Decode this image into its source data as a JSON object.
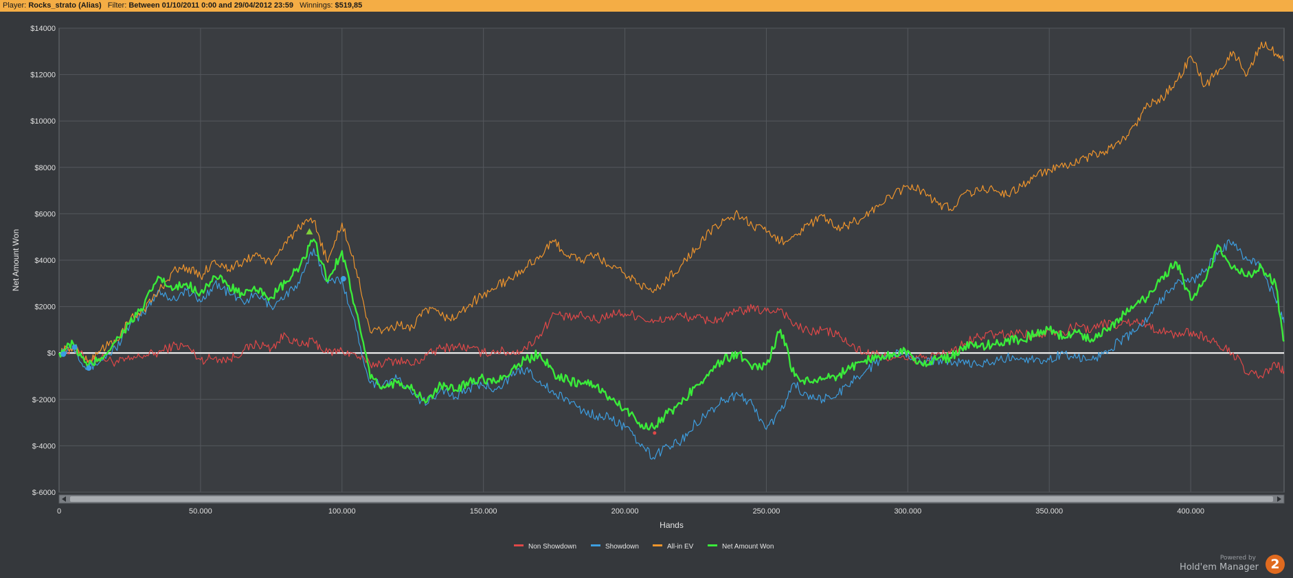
{
  "header": {
    "player_key": "Player:",
    "player_value": "Rocks_strato (Alias)",
    "filter_key": "Filter:",
    "filter_value": "Between 01/10/2011 0:00 and 29/04/2012 23:59",
    "winnings_key": "Winnings:",
    "winnings_value": "$519,85"
  },
  "branding": {
    "powered_by": "Powered by",
    "product": "Hold'em Manager",
    "logo_text": "2"
  },
  "colors": {
    "background": "#35383c",
    "plot_background": "#3a3d41",
    "grid": "#54585d",
    "zero_line": "#ffffff",
    "non_showdown": "#e04848",
    "showdown": "#3d9ee0",
    "allin_ev": "#f0952c",
    "net_won": "#3aeb3a",
    "header_bar": "#f4ad45"
  },
  "chart_data": {
    "type": "line",
    "xlabel": "Hands",
    "ylabel": "Net Amount Won",
    "xlim": [
      0,
      433000
    ],
    "ylim": [
      -6000,
      14000
    ],
    "x_ticks": [
      0,
      50000,
      100000,
      150000,
      200000,
      250000,
      300000,
      350000,
      400000
    ],
    "x_tick_labels": [
      "0",
      "50.000",
      "100.000",
      "150.000",
      "200.000",
      "250.000",
      "300.000",
      "350.000",
      "400.000"
    ],
    "y_ticks": [
      14000,
      12000,
      10000,
      8000,
      6000,
      4000,
      2000,
      0,
      -2000,
      -4000,
      -6000
    ],
    "y_tick_labels": [
      "$14000",
      "$12000",
      "$10000",
      "$8000",
      "$6000",
      "$4000",
      "$2000",
      "$0",
      "$-2000",
      "$-4000",
      "$-6000"
    ],
    "grid": true,
    "legend_position": "bottom-center",
    "x": [
      0,
      5000,
      10000,
      15000,
      20000,
      25000,
      30000,
      35000,
      40000,
      45000,
      50000,
      55000,
      60000,
      65000,
      70000,
      75000,
      80000,
      85000,
      90000,
      95000,
      100000,
      105000,
      110000,
      115000,
      120000,
      125000,
      130000,
      135000,
      140000,
      145000,
      150000,
      155000,
      160000,
      165000,
      170000,
      175000,
      180000,
      185000,
      190000,
      195000,
      200000,
      205000,
      210000,
      215000,
      220000,
      225000,
      230000,
      235000,
      240000,
      245000,
      250000,
      255000,
      260000,
      265000,
      270000,
      275000,
      280000,
      285000,
      290000,
      295000,
      300000,
      305000,
      310000,
      315000,
      320000,
      325000,
      330000,
      335000,
      340000,
      345000,
      350000,
      355000,
      360000,
      365000,
      370000,
      375000,
      380000,
      385000,
      390000,
      395000,
      400000,
      405000,
      410000,
      415000,
      420000,
      425000,
      430000,
      433000
    ],
    "series": [
      {
        "name": "Non Showdown",
        "color": "#e04848",
        "width": 1.2,
        "values": [
          0,
          200,
          -300,
          -200,
          -400,
          -300,
          -100,
          0,
          300,
          300,
          -300,
          -200,
          -300,
          100,
          400,
          200,
          800,
          300,
          500,
          0,
          100,
          -100,
          -500,
          -400,
          -300,
          -500,
          -100,
          200,
          300,
          200,
          0,
          100,
          0,
          200,
          800,
          1700,
          1500,
          1600,
          1400,
          1700,
          1700,
          1600,
          1300,
          1500,
          1600,
          1500,
          1400,
          1500,
          1800,
          1900,
          1800,
          1900,
          1200,
          900,
          1000,
          800,
          300,
          0,
          -100,
          -200,
          -300,
          -200,
          -100,
          0,
          400,
          700,
          800,
          800,
          900,
          700,
          1000,
          900,
          1200,
          1000,
          1300,
          1200,
          1400,
          1200,
          900,
          800,
          900,
          700,
          300,
          0,
          -900,
          -1000,
          -500,
          -800
        ]
      },
      {
        "name": "Showdown",
        "color": "#3d9ee0",
        "width": 1.2,
        "values": [
          0,
          300,
          -700,
          -300,
          200,
          1200,
          1700,
          2700,
          2300,
          2700,
          2200,
          3000,
          2600,
          2200,
          2500,
          2000,
          2500,
          3000,
          4500,
          3000,
          3200,
          1000,
          -1300,
          -1300,
          -1100,
          -1800,
          -2200,
          -1500,
          -1900,
          -1500,
          -1400,
          -1500,
          -1000,
          -700,
          -1200,
          -1800,
          -2000,
          -2500,
          -2700,
          -2800,
          -3200,
          -3900,
          -4500,
          -4000,
          -3800,
          -3000,
          -2500,
          -2000,
          -1800,
          -2200,
          -3300,
          -2500,
          -1300,
          -2000,
          -2000,
          -1800,
          -1200,
          -800,
          -300,
          0,
          0,
          -400,
          -300,
          -300,
          -500,
          -500,
          -400,
          -200,
          -200,
          -300,
          -300,
          0,
          -200,
          -300,
          100,
          500,
          900,
          1500,
          2400,
          3000,
          3100,
          3500,
          4400,
          4800,
          4000,
          3700,
          2300,
          1300
        ]
      },
      {
        "name": "All-in EV",
        "color": "#f0952c",
        "width": 1.2,
        "values": [
          0,
          300,
          -400,
          200,
          500,
          1400,
          1900,
          2600,
          3500,
          3700,
          3300,
          4000,
          3600,
          3900,
          4300,
          3800,
          4800,
          5400,
          5700,
          3900,
          5600,
          3600,
          900,
          1000,
          1200,
          1100,
          1900,
          1600,
          1500,
          2100,
          2500,
          2900,
          3200,
          3700,
          4200,
          4800,
          4200,
          4000,
          4200,
          3700,
          3400,
          3000,
          2600,
          3200,
          3800,
          4500,
          5200,
          5700,
          6000,
          5500,
          5200,
          4800,
          5100,
          5500,
          5900,
          5300,
          5600,
          5900,
          6400,
          6800,
          7200,
          7000,
          6500,
          6200,
          6900,
          7000,
          7100,
          6800,
          7200,
          7600,
          7900,
          8000,
          8200,
          8500,
          8700,
          9000,
          9800,
          10700,
          11000,
          11700,
          12800,
          11500,
          12200,
          13000,
          12000,
          13400,
          12900,
          12600
        ]
      },
      {
        "name": "Net Amount Won",
        "color": "#3aeb3a",
        "width": 2.4,
        "values": [
          0,
          400,
          -600,
          -200,
          500,
          1300,
          2000,
          3300,
          2700,
          3000,
          2600,
          3300,
          2900,
          2500,
          2700,
          2400,
          3000,
          3700,
          4900,
          3100,
          4400,
          1800,
          -1100,
          -1500,
          -1200,
          -1600,
          -2100,
          -1400,
          -1600,
          -1200,
          -1100,
          -1200,
          -700,
          -300,
          0,
          -900,
          -1200,
          -1300,
          -1400,
          -2000,
          -2400,
          -3000,
          -3200,
          -2600,
          -2200,
          -1400,
          -800,
          -300,
          0,
          -700,
          -500,
          1000,
          -1000,
          -1200,
          -1100,
          -1000,
          -600,
          -300,
          -200,
          0,
          100,
          -500,
          -300,
          -200,
          300,
          300,
          400,
          500,
          600,
          800,
          1000,
          700,
          900,
          600,
          1000,
          1500,
          2000,
          2400,
          3300,
          3900,
          2300,
          3100,
          4600,
          3700,
          3300,
          3700,
          3000,
          500
        ]
      }
    ],
    "markers": [
      {
        "series": "Showdown",
        "x": 1500,
        "y": -50,
        "shape": "circle"
      },
      {
        "series": "Showdown",
        "x": 5500,
        "y": 250,
        "shape": "circle"
      },
      {
        "series": "Showdown",
        "x": 10500,
        "y": -650,
        "shape": "circle"
      },
      {
        "series": "Showdown",
        "x": 100500,
        "y": 3200,
        "shape": "circle"
      },
      {
        "series": "Net Amount Won",
        "x": 88500,
        "y": 5200,
        "shape": "triangle"
      },
      {
        "series": "Non Showdown",
        "x": 210500,
        "y": -3450,
        "shape": "dot"
      }
    ],
    "legend": [
      "Non Showdown",
      "Showdown",
      "All-in EV",
      "Net Amount Won"
    ]
  }
}
